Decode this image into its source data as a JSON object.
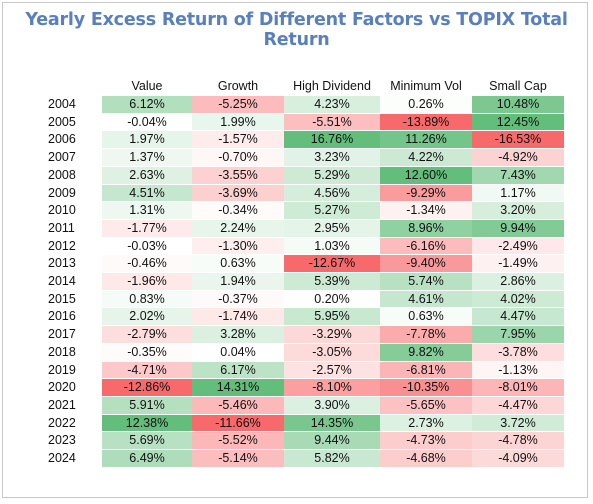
{
  "chart_data": {
    "type": "table",
    "title": "Yearly Excess Return of Different Factors vs TOPIX Total Return",
    "columns": [
      "Value",
      "Growth",
      "High Dividend",
      "Minimum Vol",
      "Small Cap"
    ],
    "rows": [
      {
        "year": "2004",
        "values": [
          "6.12%",
          "-5.25%",
          "4.23%",
          "0.26%",
          "10.48%"
        ]
      },
      {
        "year": "2005",
        "values": [
          "-0.04%",
          "1.99%",
          "-5.51%",
          "-13.89%",
          "12.45%"
        ]
      },
      {
        "year": "2006",
        "values": [
          "1.97%",
          "-1.57%",
          "16.76%",
          "11.26%",
          "-16.53%"
        ]
      },
      {
        "year": "2007",
        "values": [
          "1.37%",
          "-0.70%",
          "3.23%",
          "4.22%",
          "-4.92%"
        ]
      },
      {
        "year": "2008",
        "values": [
          "2.63%",
          "-3.55%",
          "5.29%",
          "12.60%",
          "7.43%"
        ]
      },
      {
        "year": "2009",
        "values": [
          "4.51%",
          "-3.69%",
          "4.56%",
          "-9.29%",
          "1.17%"
        ]
      },
      {
        "year": "2010",
        "values": [
          "1.31%",
          "-0.34%",
          "5.27%",
          "-1.34%",
          "3.20%"
        ]
      },
      {
        "year": "2011",
        "values": [
          "-1.77%",
          "2.24%",
          "2.95%",
          "8.96%",
          "9.94%"
        ]
      },
      {
        "year": "2012",
        "values": [
          "-0.03%",
          "-1.30%",
          "1.03%",
          "-6.16%",
          "-2.49%"
        ]
      },
      {
        "year": "2013",
        "values": [
          "-0.46%",
          "0.63%",
          "-12.67%",
          "-9.40%",
          "-1.49%"
        ]
      },
      {
        "year": "2014",
        "values": [
          "-1.96%",
          "1.94%",
          "5.39%",
          "5.74%",
          "2.86%"
        ]
      },
      {
        "year": "2015",
        "values": [
          "0.83%",
          "-0.37%",
          "0.20%",
          "4.61%",
          "4.02%"
        ]
      },
      {
        "year": "2016",
        "values": [
          "2.02%",
          "-1.74%",
          "5.95%",
          "0.63%",
          "4.47%"
        ]
      },
      {
        "year": "2017",
        "values": [
          "-2.79%",
          "3.28%",
          "-3.29%",
          "-7.78%",
          "7.95%"
        ]
      },
      {
        "year": "2018",
        "values": [
          "-0.35%",
          "0.04%",
          "-3.05%",
          "9.82%",
          "-3.78%"
        ]
      },
      {
        "year": "2019",
        "values": [
          "-4.71%",
          "6.17%",
          "-2.57%",
          "-6.81%",
          "-1.13%"
        ]
      },
      {
        "year": "2020",
        "values": [
          "-12.86%",
          "14.31%",
          "-8.10%",
          "-10.35%",
          "-8.01%"
        ]
      },
      {
        "year": "2021",
        "values": [
          "5.91%",
          "-5.46%",
          "3.90%",
          "-5.65%",
          "-4.47%"
        ]
      },
      {
        "year": "2022",
        "values": [
          "12.38%",
          "-11.66%",
          "14.35%",
          "2.73%",
          "3.72%"
        ]
      },
      {
        "year": "2023",
        "values": [
          "5.69%",
          "-5.52%",
          "9.44%",
          "-4.73%",
          "-4.78%"
        ]
      },
      {
        "year": "2024",
        "values": [
          "6.49%",
          "-5.14%",
          "5.82%",
          "-4.68%",
          "-4.09%"
        ]
      }
    ],
    "colors": {
      "positive": "#63be7b",
      "negative": "#f8696b",
      "neutral": "#ffffff",
      "title": "#5a7fbf"
    }
  }
}
